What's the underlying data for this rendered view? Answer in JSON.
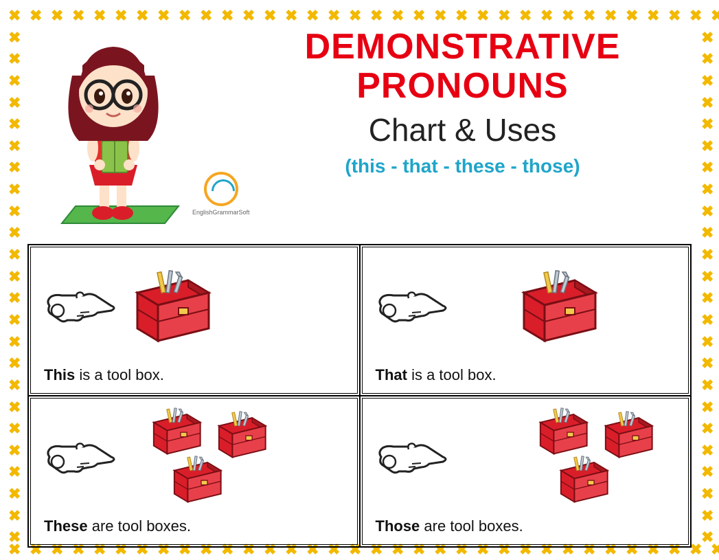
{
  "title_line1": "DEMONSTRATIVE",
  "title_line2": "PRONOUNS",
  "subtitle": "Chart & Uses",
  "tagline": "(this - that - these - those)",
  "logo_text": "EnglishGrammarSoft",
  "colors": {
    "title": "#e60012",
    "subtitle": "#222222",
    "tagline": "#1fa5c9",
    "border_x": "#f2b900",
    "toolbox_red": "#d91e2a",
    "toolbox_dark": "#7a0e14",
    "hand_outline": "#222222",
    "hand_fill": "#ffffff",
    "background": "#ffffff"
  },
  "border": {
    "glyph": "✖",
    "count_horizontal": 34,
    "count_vertical": 26,
    "spacing": 30
  },
  "cells": [
    {
      "pronoun": "This",
      "rest": " is a tool box.",
      "near": true,
      "multiple": false
    },
    {
      "pronoun": "That",
      "rest": " is a tool box.",
      "near": false,
      "multiple": false
    },
    {
      "pronoun": "These",
      "rest": " are tool boxes.",
      "near": true,
      "multiple": true
    },
    {
      "pronoun": "Those",
      "rest": " are tool boxes.",
      "near": false,
      "multiple": true
    }
  ],
  "character": {
    "hair_color": "#7a1520",
    "skin_color": "#fde1c9",
    "shirt_color": "#e6302a",
    "book_color": "#8bc34a",
    "mat_color": "#55b64c",
    "glasses_color": "#222222"
  }
}
